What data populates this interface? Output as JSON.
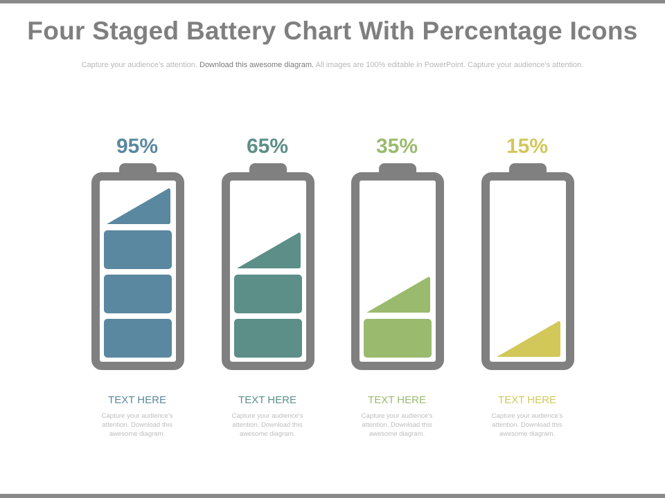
{
  "header": {
    "title": "Four Staged Battery Chart With Percentage Icons",
    "subtitle_start": "Capture your audience’s attention. ",
    "subtitle_mid": "Download this awesome diagram.",
    "subtitle_end": " All images are 100% editable in PowerPoint. Capture your audience’s attention."
  },
  "chart_data": {
    "type": "bar",
    "categories": [
      "TEXT HERE",
      "TEXT HERE",
      "TEXT HERE",
      "TEXT HERE"
    ],
    "values": [
      95,
      65,
      35,
      15
    ],
    "labels": [
      "95%",
      "65%",
      "35%",
      "15%"
    ],
    "colors": [
      "#5a88a0",
      "#5b8f87",
      "#9aba6e",
      "#d2c85a"
    ],
    "ylim": [
      0,
      100
    ]
  },
  "captions": [
    {
      "title": "TEXT HERE",
      "text": "Capture your audience's attention. Download this awesome diagram."
    },
    {
      "title": "TEXT HERE",
      "text": "Capture your audience's attention. Download this awesome diagram."
    },
    {
      "title": "TEXT HERE",
      "text": "Capture your audience's attention. Download this awesome diagram."
    },
    {
      "title": "TEXT HERE",
      "text": "Capture your audience's attention. Download this awesome diagram."
    }
  ],
  "colors": {
    "frame": "#808080",
    "title": "#7f7f7f"
  }
}
